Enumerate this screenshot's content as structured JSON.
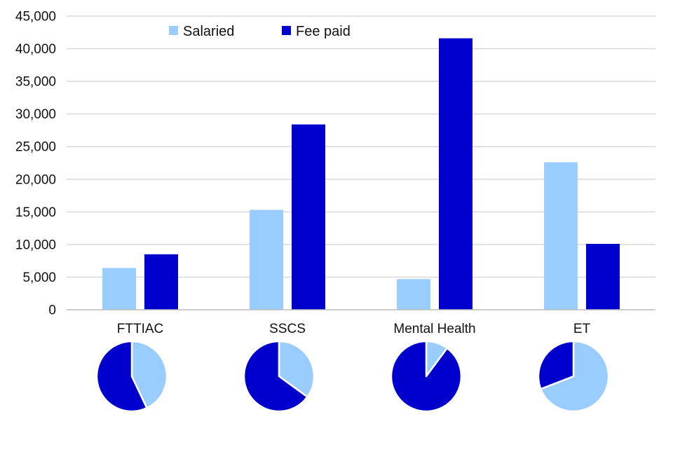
{
  "chart_data": [
    {
      "type": "bar",
      "title": "",
      "xlabel": "",
      "ylabel": "",
      "categories": [
        "FTTIAC",
        "SSCS",
        "Mental Health",
        "ET"
      ],
      "series": [
        {
          "name": "Salaried",
          "color": "#99ccff",
          "values": [
            6400,
            15300,
            4700,
            22600
          ]
        },
        {
          "name": "Fee paid",
          "color": "#0000cc",
          "values": [
            8500,
            28400,
            41600,
            10100
          ]
        }
      ],
      "ylim": [
        0,
        45000
      ],
      "yticks": [
        0,
        5000,
        10000,
        15000,
        20000,
        25000,
        30000,
        35000,
        40000,
        45000
      ],
      "ytick_labels": [
        "0",
        "5,000",
        "10,000",
        "15,000",
        "20,000",
        "25,000",
        "30,000",
        "35,000",
        "40,000",
        "45,000"
      ],
      "grid": true,
      "legend_position": "top-left"
    },
    {
      "type": "pie",
      "title": "",
      "category": "FTTIAC",
      "slices": [
        {
          "name": "Salaried",
          "value": 6400,
          "color": "#99ccff"
        },
        {
          "name": "Fee paid",
          "value": 8500,
          "color": "#0000cc"
        }
      ]
    },
    {
      "type": "pie",
      "title": "",
      "category": "SSCS",
      "slices": [
        {
          "name": "Salaried",
          "value": 15300,
          "color": "#99ccff"
        },
        {
          "name": "Fee paid",
          "value": 28400,
          "color": "#0000cc"
        }
      ]
    },
    {
      "type": "pie",
      "title": "",
      "category": "Mental Health",
      "slices": [
        {
          "name": "Salaried",
          "value": 4700,
          "color": "#99ccff"
        },
        {
          "name": "Fee paid",
          "value": 41600,
          "color": "#0000cc"
        }
      ]
    },
    {
      "type": "pie",
      "title": "",
      "category": "ET",
      "slices": [
        {
          "name": "Salaried",
          "value": 22600,
          "color": "#99ccff"
        },
        {
          "name": "Fee paid",
          "value": 10100,
          "color": "#0000cc"
        }
      ]
    }
  ]
}
